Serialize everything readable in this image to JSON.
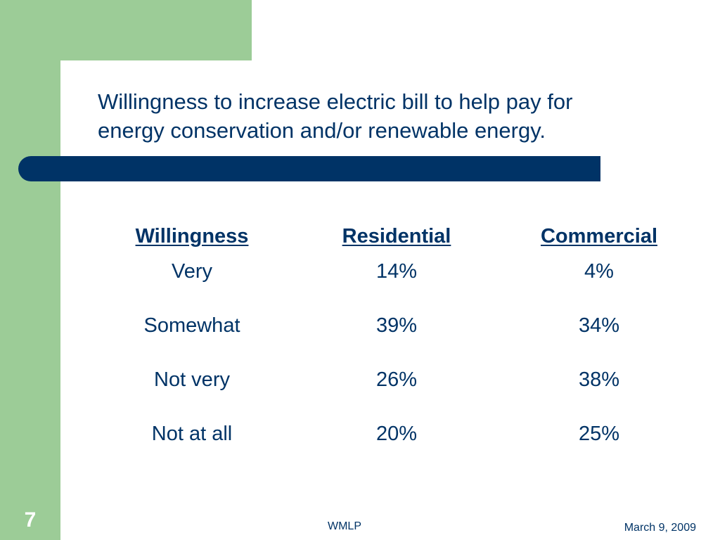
{
  "slide": {
    "title_line1": "Willingness to increase electric bill to help pay for",
    "title_line2": "energy conservation and/or renewable energy.",
    "number": "7",
    "footer_center": "WMLP",
    "footer_date": "March 9, 2009"
  },
  "table": {
    "headers": [
      "Willingness",
      "Residential",
      "Commercial"
    ],
    "rows": [
      [
        "Very",
        "14%",
        "4%"
      ],
      [
        "Somewhat",
        "39%",
        "34%"
      ],
      [
        "Not very",
        "26%",
        "38%"
      ],
      [
        "Not at all",
        "20%",
        "25%"
      ]
    ]
  },
  "colors": {
    "accent_green": "#9ccc97",
    "navy": "#003366",
    "background": "#ffffff"
  }
}
